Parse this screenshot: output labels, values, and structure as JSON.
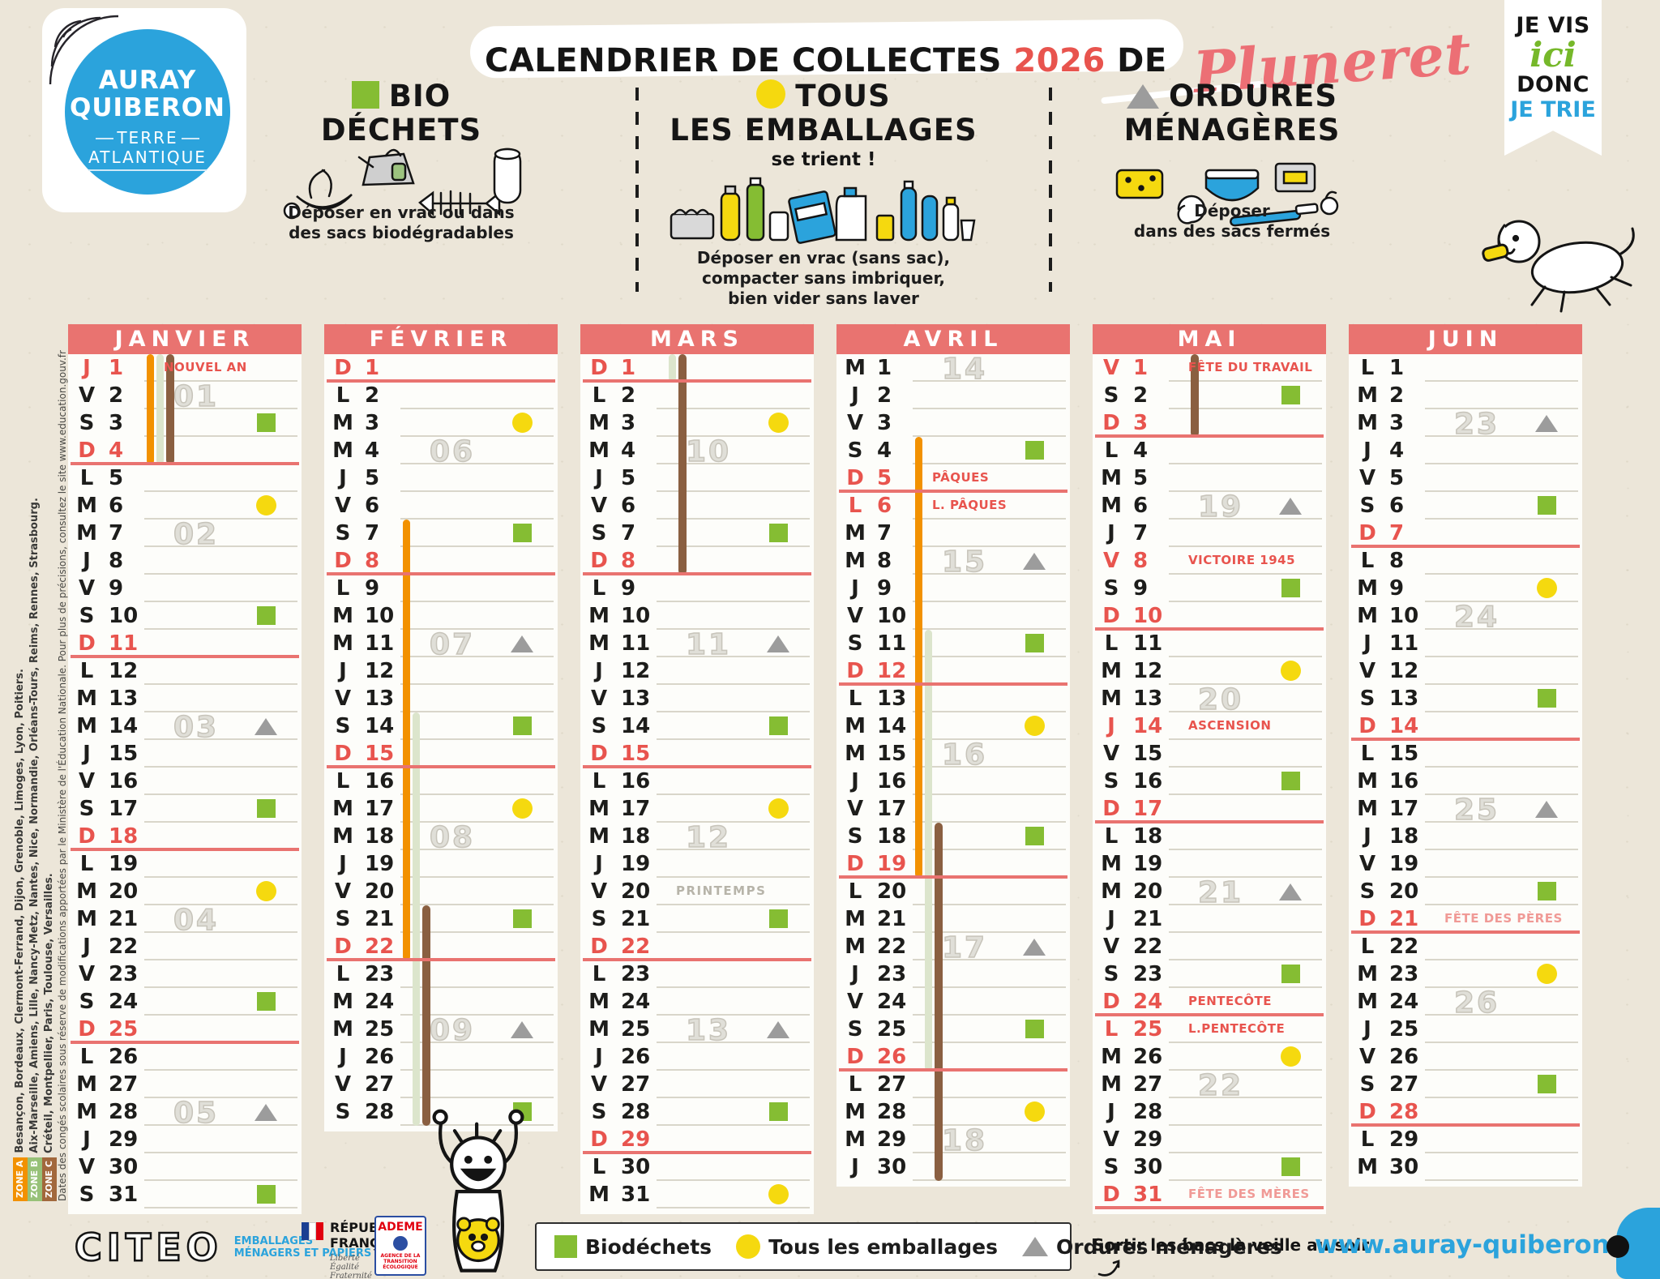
{
  "header": {
    "title": "CALENDRIER DE COLLECTES",
    "year": "2026",
    "de": "DE",
    "city": "Pluneret"
  },
  "logo": {
    "l1": "AURAY",
    "l2": "QUIBERON",
    "l3": "TERRE",
    "l4": "ATLANTIQUE"
  },
  "ribbon": {
    "l1": "JE VIS",
    "l2": "ici",
    "l3": "DONC",
    "l4": "JE TRIE"
  },
  "colors": {
    "coral": "#e97370",
    "red": "#e8544e",
    "green": "#85bd33",
    "yellow": "#f5d90f",
    "gray": "#9c9c9c",
    "blue": "#2ba3dc",
    "zoneA": "#f29100",
    "zoneB": "#dce5cc",
    "zoneC": "#8a5f41"
  },
  "waste_types": [
    {
      "id": "bio",
      "icon": "square",
      "line1": "BIO",
      "line2": "DÉCHETS",
      "subtitle": "",
      "caption": "Déposer en vrac ou dans\ndes sacs biodégradables"
    },
    {
      "id": "emballages",
      "icon": "circle",
      "line1": "TOUS",
      "line2": "LES EMBALLAGES",
      "subtitle": "se trient !",
      "caption": "Déposer en vrac (sans sac),\ncompacter sans imbriquer,\nbien vider sans laver"
    },
    {
      "id": "ordures",
      "icon": "triangle",
      "line1": "ORDURES",
      "line2": "MÉNAGÈRES",
      "subtitle": "",
      "caption": "Déposer\ndans des sacs fermés"
    }
  ],
  "legend": {
    "items": [
      {
        "icon": "square",
        "label": "Biodéchets"
      },
      {
        "icon": "circle",
        "label": "Tous les emballages"
      },
      {
        "icon": "triangle",
        "label": "Ordures ménagères"
      }
    ],
    "note": "Sortir les bacs la veille au soir",
    "url": "www.auray-quiberon.bzh"
  },
  "sidebar": {
    "zones": [
      {
        "badge": "ZONE A",
        "cls": "zA",
        "text": "Besançon, Bordeaux, Clermont-Ferrand, Dijon, Grenoble, Limoges, Lyon, Poitiers."
      },
      {
        "badge": "ZONE B",
        "cls": "zB",
        "text": "Aix-Marseille, Amiens, Lille, Nancy-Metz, Nantes, Nice, Normandie, Orléans-Tours, Reims, Rennes, Strasbourg."
      },
      {
        "badge": "ZONE C",
        "cls": "zC",
        "text": "Créteil, Montpellier, Paris, Toulouse, Versailles."
      }
    ],
    "disclaimer": "Dates des congés scolaires sous réserve de modifications apportées par le Ministère de l'Éducation Nationale. Pour plus de précisions, consultez le site www.education.gouv.fr"
  },
  "footer": {
    "citeo": "CITEO",
    "citeo_sub": "EMBALLAGES\nMÉNAGERS ET PAPIERS",
    "rf": "RÉPUBLIQUE\nFRANÇAISE",
    "rf_motto": "Liberté\nÉgalité\nFraternité",
    "ademe": "ADEME",
    "ademe_sub": "AGENCE DE LA\nTRANSITION\nÉCOLOGIQUE"
  },
  "months": [
    {
      "name": "JANVIER",
      "stripes": [
        {
          "zone": "A",
          "from": 1,
          "to": 4
        },
        {
          "zone": "B",
          "from": 1,
          "to": 4
        },
        {
          "zone": "C",
          "from": 1,
          "to": 4
        }
      ],
      "days": [
        {
          "n": 1,
          "l": "J",
          "red": true,
          "ev": "NOUVEL AN"
        },
        {
          "n": 2,
          "l": "V",
          "wk": "01"
        },
        {
          "n": 3,
          "l": "S",
          "mk": "bio"
        },
        {
          "n": 4,
          "l": "D",
          "red": true
        },
        {
          "n": 5,
          "l": "L"
        },
        {
          "n": 6,
          "l": "M",
          "mk": "emb"
        },
        {
          "n": 7,
          "l": "M",
          "wk": "02"
        },
        {
          "n": 8,
          "l": "J"
        },
        {
          "n": 9,
          "l": "V"
        },
        {
          "n": 10,
          "l": "S",
          "mk": "bio"
        },
        {
          "n": 11,
          "l": "D",
          "red": true
        },
        {
          "n": 12,
          "l": "L"
        },
        {
          "n": 13,
          "l": "M"
        },
        {
          "n": 14,
          "l": "M",
          "wk": "03",
          "mk": "om"
        },
        {
          "n": 15,
          "l": "J"
        },
        {
          "n": 16,
          "l": "V"
        },
        {
          "n": 17,
          "l": "S",
          "mk": "bio"
        },
        {
          "n": 18,
          "l": "D",
          "red": true
        },
        {
          "n": 19,
          "l": "L"
        },
        {
          "n": 20,
          "l": "M",
          "mk": "emb"
        },
        {
          "n": 21,
          "l": "M",
          "wk": "04"
        },
        {
          "n": 22,
          "l": "J"
        },
        {
          "n": 23,
          "l": "V"
        },
        {
          "n": 24,
          "l": "S",
          "mk": "bio"
        },
        {
          "n": 25,
          "l": "D",
          "red": true
        },
        {
          "n": 26,
          "l": "L"
        },
        {
          "n": 27,
          "l": "M"
        },
        {
          "n": 28,
          "l": "M",
          "wk": "05",
          "mk": "om"
        },
        {
          "n": 29,
          "l": "J"
        },
        {
          "n": 30,
          "l": "V"
        },
        {
          "n": 31,
          "l": "S",
          "mk": "bio"
        }
      ]
    },
    {
      "name": "FÉVRIER",
      "stripes": [
        {
          "zone": "A",
          "from": 7,
          "to": 22
        },
        {
          "zone": "B",
          "from": 14,
          "to": 28
        },
        {
          "zone": "C",
          "from": 21,
          "to": 28
        }
      ],
      "days": [
        {
          "n": 1,
          "l": "D",
          "red": true
        },
        {
          "n": 2,
          "l": "L"
        },
        {
          "n": 3,
          "l": "M",
          "mk": "emb"
        },
        {
          "n": 4,
          "l": "M",
          "wk": "06"
        },
        {
          "n": 5,
          "l": "J"
        },
        {
          "n": 6,
          "l": "V"
        },
        {
          "n": 7,
          "l": "S",
          "mk": "bio"
        },
        {
          "n": 8,
          "l": "D",
          "red": true
        },
        {
          "n": 9,
          "l": "L"
        },
        {
          "n": 10,
          "l": "M"
        },
        {
          "n": 11,
          "l": "M",
          "wk": "07",
          "mk": "om"
        },
        {
          "n": 12,
          "l": "J"
        },
        {
          "n": 13,
          "l": "V"
        },
        {
          "n": 14,
          "l": "S",
          "mk": "bio"
        },
        {
          "n": 15,
          "l": "D",
          "red": true
        },
        {
          "n": 16,
          "l": "L"
        },
        {
          "n": 17,
          "l": "M",
          "mk": "emb"
        },
        {
          "n": 18,
          "l": "M",
          "wk": "08"
        },
        {
          "n": 19,
          "l": "J"
        },
        {
          "n": 20,
          "l": "V"
        },
        {
          "n": 21,
          "l": "S",
          "mk": "bio"
        },
        {
          "n": 22,
          "l": "D",
          "red": true
        },
        {
          "n": 23,
          "l": "L"
        },
        {
          "n": 24,
          "l": "M"
        },
        {
          "n": 25,
          "l": "M",
          "wk": "09",
          "mk": "om"
        },
        {
          "n": 26,
          "l": "J"
        },
        {
          "n": 27,
          "l": "V"
        },
        {
          "n": 28,
          "l": "S",
          "mk": "bio"
        }
      ]
    },
    {
      "name": "MARS",
      "stripes": [
        {
          "zone": "B",
          "from": 1,
          "to": 1
        },
        {
          "zone": "C",
          "from": 1,
          "to": 8
        }
      ],
      "days": [
        {
          "n": 1,
          "l": "D",
          "red": true
        },
        {
          "n": 2,
          "l": "L"
        },
        {
          "n": 3,
          "l": "M",
          "mk": "emb"
        },
        {
          "n": 4,
          "l": "M",
          "wk": "10"
        },
        {
          "n": 5,
          "l": "J"
        },
        {
          "n": 6,
          "l": "V"
        },
        {
          "n": 7,
          "l": "S",
          "mk": "bio"
        },
        {
          "n": 8,
          "l": "D",
          "red": true
        },
        {
          "n": 9,
          "l": "L"
        },
        {
          "n": 10,
          "l": "M"
        },
        {
          "n": 11,
          "l": "M",
          "wk": "11",
          "mk": "om"
        },
        {
          "n": 12,
          "l": "J"
        },
        {
          "n": 13,
          "l": "V"
        },
        {
          "n": 14,
          "l": "S",
          "mk": "bio"
        },
        {
          "n": 15,
          "l": "D",
          "red": true
        },
        {
          "n": 16,
          "l": "L"
        },
        {
          "n": 17,
          "l": "M",
          "mk": "emb"
        },
        {
          "n": 18,
          "l": "M",
          "wk": "12"
        },
        {
          "n": 19,
          "l": "J"
        },
        {
          "n": 20,
          "l": "V",
          "ev": "PRINTEMPS",
          "evs": "gray"
        },
        {
          "n": 21,
          "l": "S",
          "mk": "bio"
        },
        {
          "n": 22,
          "l": "D",
          "red": true
        },
        {
          "n": 23,
          "l": "L"
        },
        {
          "n": 24,
          "l": "M"
        },
        {
          "n": 25,
          "l": "M",
          "wk": "13",
          "mk": "om"
        },
        {
          "n": 26,
          "l": "J"
        },
        {
          "n": 27,
          "l": "V"
        },
        {
          "n": 28,
          "l": "S",
          "mk": "bio"
        },
        {
          "n": 29,
          "l": "D",
          "red": true
        },
        {
          "n": 30,
          "l": "L"
        },
        {
          "n": 31,
          "l": "M",
          "mk": "emb"
        }
      ]
    },
    {
      "name": "AVRIL",
      "stripes": [
        {
          "zone": "A",
          "from": 4,
          "to": 19
        },
        {
          "zone": "B",
          "from": 11,
          "to": 26
        },
        {
          "zone": "C",
          "from": 18,
          "to": 30
        }
      ],
      "days": [
        {
          "n": 1,
          "l": "M",
          "wk": "14"
        },
        {
          "n": 2,
          "l": "J"
        },
        {
          "n": 3,
          "l": "V"
        },
        {
          "n": 4,
          "l": "S",
          "mk": "bio"
        },
        {
          "n": 5,
          "l": "D",
          "red": true,
          "ev": "PÂQUES"
        },
        {
          "n": 6,
          "l": "L",
          "red": true,
          "ev": "L. PÂQUES"
        },
        {
          "n": 7,
          "l": "M"
        },
        {
          "n": 8,
          "l": "M",
          "wk": "15",
          "mk": "om"
        },
        {
          "n": 9,
          "l": "J"
        },
        {
          "n": 10,
          "l": "V"
        },
        {
          "n": 11,
          "l": "S",
          "mk": "bio"
        },
        {
          "n": 12,
          "l": "D",
          "red": true
        },
        {
          "n": 13,
          "l": "L"
        },
        {
          "n": 14,
          "l": "M",
          "mk": "emb"
        },
        {
          "n": 15,
          "l": "M",
          "wk": "16"
        },
        {
          "n": 16,
          "l": "J"
        },
        {
          "n": 17,
          "l": "V"
        },
        {
          "n": 18,
          "l": "S",
          "mk": "bio"
        },
        {
          "n": 19,
          "l": "D",
          "red": true
        },
        {
          "n": 20,
          "l": "L"
        },
        {
          "n": 21,
          "l": "M"
        },
        {
          "n": 22,
          "l": "M",
          "wk": "17",
          "mk": "om"
        },
        {
          "n": 23,
          "l": "J"
        },
        {
          "n": 24,
          "l": "V"
        },
        {
          "n": 25,
          "l": "S",
          "mk": "bio"
        },
        {
          "n": 26,
          "l": "D",
          "red": true
        },
        {
          "n": 27,
          "l": "L"
        },
        {
          "n": 28,
          "l": "M",
          "mk": "emb"
        },
        {
          "n": 29,
          "l": "M",
          "wk": "18"
        },
        {
          "n": 30,
          "l": "J"
        }
      ]
    },
    {
      "name": "MAI",
      "stripes": [
        {
          "zone": "C",
          "from": 1,
          "to": 3
        }
      ],
      "days": [
        {
          "n": 1,
          "l": "V",
          "red": true,
          "ev": "FÊTE DU TRAVAIL"
        },
        {
          "n": 2,
          "l": "S",
          "mk": "bio"
        },
        {
          "n": 3,
          "l": "D",
          "red": true
        },
        {
          "n": 4,
          "l": "L"
        },
        {
          "n": 5,
          "l": "M"
        },
        {
          "n": 6,
          "l": "M",
          "wk": "19",
          "mk": "om"
        },
        {
          "n": 7,
          "l": "J"
        },
        {
          "n": 8,
          "l": "V",
          "red": true,
          "ev": "VICTOIRE 1945"
        },
        {
          "n": 9,
          "l": "S",
          "mk": "bio"
        },
        {
          "n": 10,
          "l": "D",
          "red": true
        },
        {
          "n": 11,
          "l": "L"
        },
        {
          "n": 12,
          "l": "M",
          "mk": "emb"
        },
        {
          "n": 13,
          "l": "M",
          "wk": "20"
        },
        {
          "n": 14,
          "l": "J",
          "red": true,
          "ev": "ASCENSION"
        },
        {
          "n": 15,
          "l": "V"
        },
        {
          "n": 16,
          "l": "S",
          "mk": "bio"
        },
        {
          "n": 17,
          "l": "D",
          "red": true
        },
        {
          "n": 18,
          "l": "L"
        },
        {
          "n": 19,
          "l": "M"
        },
        {
          "n": 20,
          "l": "M",
          "wk": "21",
          "mk": "om"
        },
        {
          "n": 21,
          "l": "J"
        },
        {
          "n": 22,
          "l": "V"
        },
        {
          "n": 23,
          "l": "S",
          "mk": "bio"
        },
        {
          "n": 24,
          "l": "D",
          "red": true,
          "ev": "PENTECÔTE"
        },
        {
          "n": 25,
          "l": "L",
          "red": true,
          "ev": "L.PENTECÔTE"
        },
        {
          "n": 26,
          "l": "M",
          "mk": "emb"
        },
        {
          "n": 27,
          "l": "M",
          "wk": "22"
        },
        {
          "n": 28,
          "l": "J"
        },
        {
          "n": 29,
          "l": "V"
        },
        {
          "n": 30,
          "l": "S",
          "mk": "bio"
        },
        {
          "n": 31,
          "l": "D",
          "red": true,
          "ev": "FÊTE DES MÈRES",
          "evs": "light"
        }
      ]
    },
    {
      "name": "JUIN",
      "stripes": [],
      "days": [
        {
          "n": 1,
          "l": "L"
        },
        {
          "n": 2,
          "l": "M"
        },
        {
          "n": 3,
          "l": "M",
          "wk": "23",
          "mk": "om"
        },
        {
          "n": 4,
          "l": "J"
        },
        {
          "n": 5,
          "l": "V"
        },
        {
          "n": 6,
          "l": "S",
          "mk": "bio"
        },
        {
          "n": 7,
          "l": "D",
          "red": true
        },
        {
          "n": 8,
          "l": "L"
        },
        {
          "n": 9,
          "l": "M",
          "mk": "emb"
        },
        {
          "n": 10,
          "l": "M",
          "wk": "24"
        },
        {
          "n": 11,
          "l": "J"
        },
        {
          "n": 12,
          "l": "V"
        },
        {
          "n": 13,
          "l": "S",
          "mk": "bio"
        },
        {
          "n": 14,
          "l": "D",
          "red": true
        },
        {
          "n": 15,
          "l": "L"
        },
        {
          "n": 16,
          "l": "M"
        },
        {
          "n": 17,
          "l": "M",
          "wk": "25",
          "mk": "om"
        },
        {
          "n": 18,
          "l": "J"
        },
        {
          "n": 19,
          "l": "V"
        },
        {
          "n": 20,
          "l": "S",
          "mk": "bio"
        },
        {
          "n": 21,
          "l": "D",
          "red": true,
          "ev": "FÊTE DES PÈRES",
          "evs": "light"
        },
        {
          "n": 22,
          "l": "L"
        },
        {
          "n": 23,
          "l": "M",
          "mk": "emb"
        },
        {
          "n": 24,
          "l": "M",
          "wk": "26"
        },
        {
          "n": 25,
          "l": "J"
        },
        {
          "n": 26,
          "l": "V"
        },
        {
          "n": 27,
          "l": "S",
          "mk": "bio"
        },
        {
          "n": 28,
          "l": "D",
          "red": true
        },
        {
          "n": 29,
          "l": "L"
        },
        {
          "n": 30,
          "l": "M"
        }
      ]
    }
  ]
}
